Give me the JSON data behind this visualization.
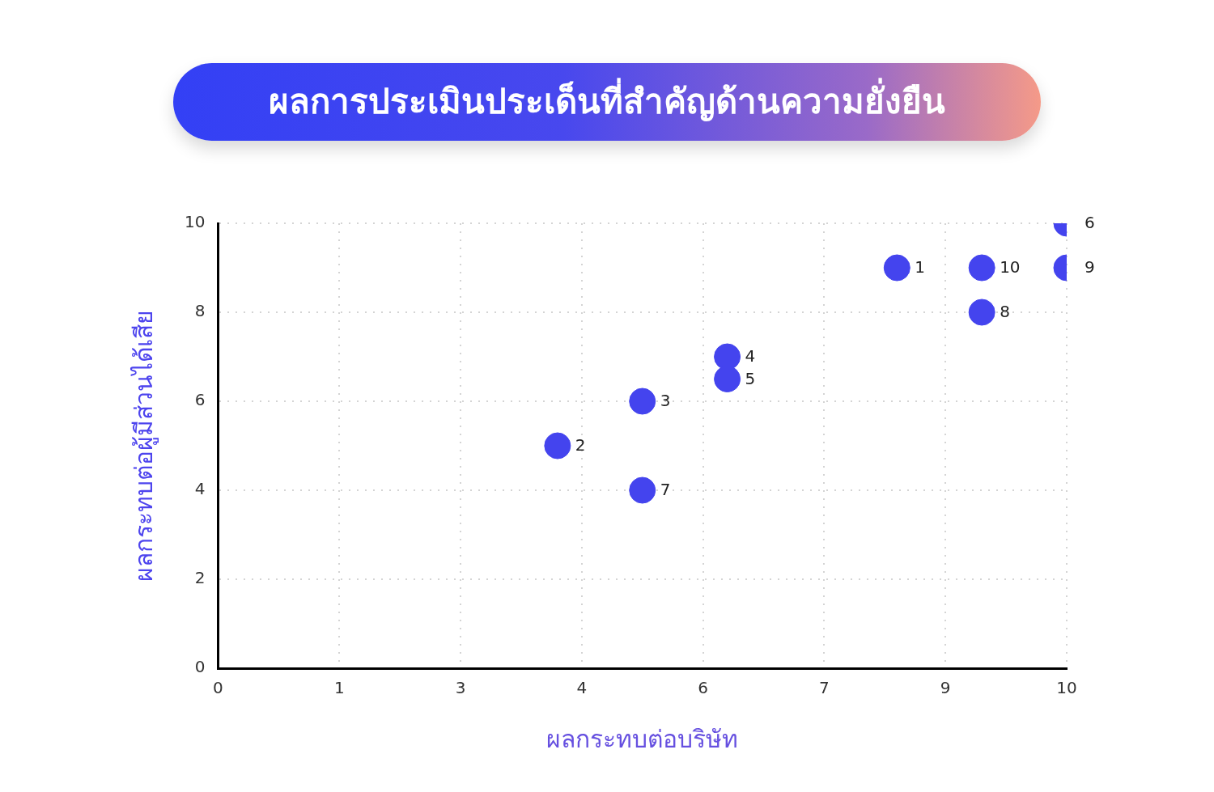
{
  "chart_data": {
    "type": "scatter",
    "title": "ผลการประเมินประเด็นที่สำคัญด้านความยั่งยืน",
    "xlabel": "ผลกระทบต่อบริษัท",
    "ylabel": "ผลกระทบต่อผู้มีส่วนได้เสีย",
    "x": [
      8,
      4,
      5,
      6,
      6,
      10,
      5,
      9,
      10,
      9
    ],
    "values": [
      9,
      5,
      6,
      7,
      6.5,
      10,
      4,
      8,
      9,
      9
    ],
    "annotations": [
      {
        "text": "1",
        "x": 8,
        "y": 9
      },
      {
        "text": "2",
        "x": 4,
        "y": 5
      },
      {
        "text": "3",
        "x": 5,
        "y": 6
      },
      {
        "text": "4",
        "x": 6,
        "y": 7
      },
      {
        "text": "5",
        "x": 6,
        "y": 6.5
      },
      {
        "text": "6",
        "x": 10,
        "y": 10
      },
      {
        "text": "7",
        "x": 5,
        "y": 4
      },
      {
        "text": "8",
        "x": 9,
        "y": 8
      },
      {
        "text": "9",
        "x": 10,
        "y": 9
      },
      {
        "text": "10",
        "x": 9,
        "y": 9
      }
    ],
    "color": "#4444ee",
    "marker": "circle",
    "xlim": [
      0,
      10
    ],
    "ylim": [
      0,
      10
    ],
    "xticks": [
      0,
      {
        "value": 1.4286,
        "label": "1"
      },
      {
        "value": 2.8571,
        "label": "3"
      },
      {
        "value": 4.2857,
        "label": "4"
      },
      {
        "value": 5.7143,
        "label": "6"
      },
      {
        "value": 7.1429,
        "label": "7"
      },
      {
        "value": 8.5714,
        "label": "9"
      },
      10
    ],
    "yticks": [
      0,
      2,
      4,
      6,
      8,
      10
    ],
    "grid": true
  }
}
